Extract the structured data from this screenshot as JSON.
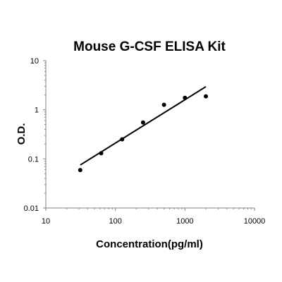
{
  "chart_data": {
    "type": "scatter",
    "title": "Mouse G-CSF ELISA Kit",
    "xlabel": "Concentration(pg/ml)",
    "ylabel": "O.D.",
    "x_scale": "log",
    "y_scale": "log",
    "xlim": [
      10,
      10000
    ],
    "ylim": [
      0.01,
      10
    ],
    "x_ticks": [
      "10",
      "100",
      "1000",
      "10000"
    ],
    "y_ticks": [
      "0.01",
      "0.1",
      "1",
      "10"
    ],
    "grid": false,
    "points": [
      {
        "x": 31.25,
        "y": 0.059
      },
      {
        "x": 62.5,
        "y": 0.13
      },
      {
        "x": 125,
        "y": 0.25
      },
      {
        "x": 250,
        "y": 0.55
      },
      {
        "x": 500,
        "y": 1.26
      },
      {
        "x": 1000,
        "y": 1.75
      },
      {
        "x": 2000,
        "y": 1.88
      }
    ],
    "fit_line": {
      "x": [
        31.25,
        2000
      ],
      "y": [
        0.075,
        2.95
      ]
    },
    "colors": {
      "marker": "#000000",
      "line": "#000000",
      "axis": "#808080"
    }
  }
}
